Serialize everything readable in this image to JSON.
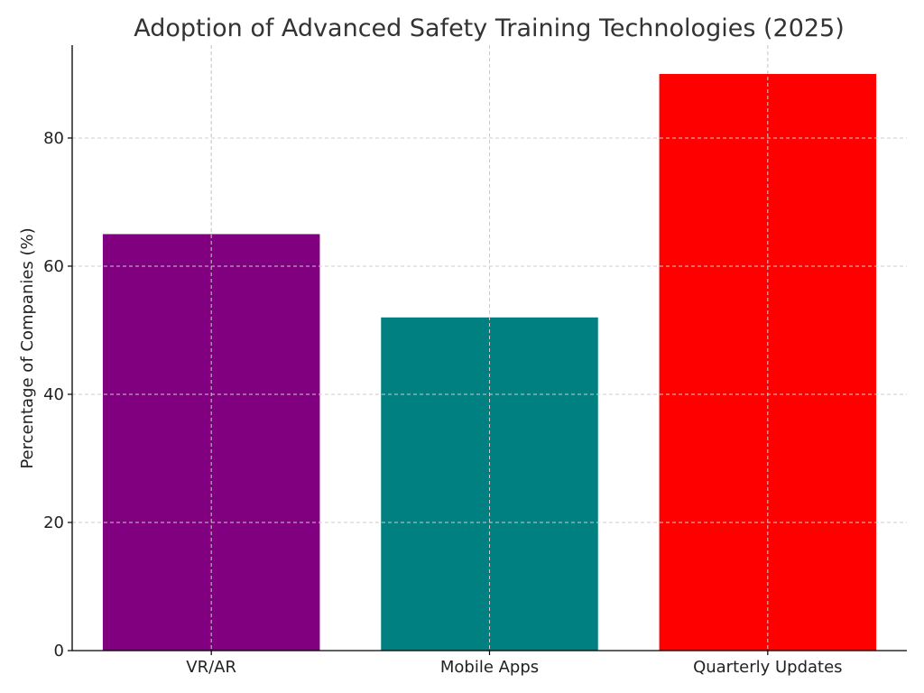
{
  "chart_data": {
    "type": "bar",
    "title": "Adoption of Advanced Safety Training Technologies (2025)",
    "xlabel": "",
    "ylabel": "Percentage of Companies (%)",
    "categories": [
      "VR/AR",
      "Mobile Apps",
      "Quarterly Updates"
    ],
    "values": [
      65,
      52,
      90
    ],
    "colors": [
      "#800080",
      "#008080",
      "#ff0000"
    ],
    "ylim": [
      0,
      94.5
    ],
    "yticks": [
      0,
      20,
      40,
      60,
      80
    ],
    "grid": true,
    "legend": "none"
  }
}
